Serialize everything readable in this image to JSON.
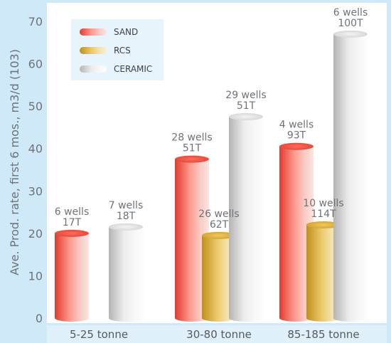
{
  "chart_data": {
    "type": "bar",
    "title": "",
    "xlabel": "",
    "ylabel": "Ave. Prod. rate, first 6 mos., m3/d (103)",
    "ylim": [
      0,
      70
    ],
    "yticks": [
      "0",
      "10",
      "20",
      "30",
      "40",
      "50",
      "60",
      "70"
    ],
    "categories": [
      "5-25 tonne",
      "30-80 tonne",
      "85-185 tonne"
    ],
    "legend_position": "top-left",
    "grid": false,
    "series": [
      {
        "name": "SAND",
        "color": "#e8473a",
        "values": [
          20,
          37.5,
          40.5
        ],
        "labels": [
          [
            "6 wells",
            "17T"
          ],
          [
            "28 wells",
            "51T"
          ],
          [
            "4 wells",
            "93T"
          ]
        ]
      },
      {
        "name": "RCS",
        "color": "#d2a12a",
        "values": [
          null,
          19.5,
          22
        ],
        "labels": [
          null,
          [
            "26 wells",
            "62T"
          ],
          [
            "10 wells",
            "114T"
          ]
        ]
      },
      {
        "name": "CERAMIC",
        "color": "#c8c8c8",
        "values": [
          21.5,
          47.5,
          67
        ],
        "labels": [
          [
            "7 wells",
            "18T"
          ],
          [
            "29 wells",
            "51T"
          ],
          [
            "6 wells",
            "100T"
          ]
        ]
      }
    ]
  }
}
